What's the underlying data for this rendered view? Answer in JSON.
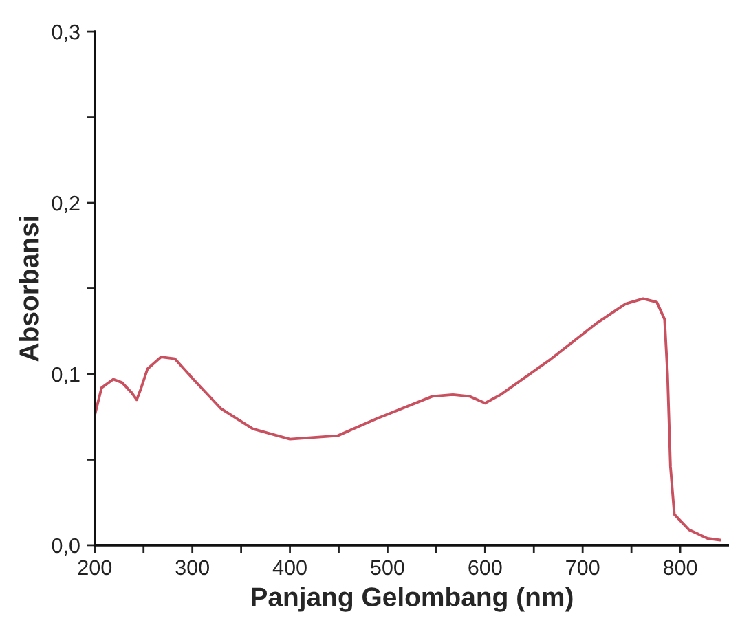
{
  "chart_data": {
    "type": "line",
    "xlabel": "Panjang Gelombang (nm)",
    "ylabel": "Absorbansi",
    "x": [
      200,
      207,
      219,
      228,
      238,
      243,
      247,
      254,
      268,
      282,
      301,
      329,
      362,
      400,
      449,
      489,
      546,
      567,
      584,
      600,
      616,
      668,
      715,
      744,
      762,
      776,
      784,
      787,
      790,
      794,
      809,
      828,
      841
    ],
    "series": [
      {
        "color": "#c8505f",
        "values": [
          0.076,
          0.092,
          0.097,
          0.095,
          0.089,
          0.085,
          0.091,
          0.103,
          0.11,
          0.109,
          0.097,
          0.08,
          0.068,
          0.062,
          0.064,
          0.074,
          0.087,
          0.088,
          0.087,
          0.083,
          0.088,
          0.109,
          0.13,
          0.141,
          0.144,
          0.142,
          0.132,
          0.1,
          0.046,
          0.018,
          0.009,
          0.004,
          0.003
        ]
      }
    ],
    "xlim": [
      200,
      850
    ],
    "ylim": [
      0,
      0.3
    ],
    "xticks": [
      200,
      {
        "value": 250,
        "label": null
      },
      300,
      {
        "value": 350,
        "label": null
      },
      400,
      {
        "value": 450,
        "label": null
      },
      500,
      {
        "value": 550,
        "label": null
      },
      600,
      {
        "value": 650,
        "label": null
      },
      700,
      {
        "value": 750,
        "label": null
      },
      800
    ],
    "yticks": [
      {
        "value": 0,
        "label": "0,0"
      },
      {
        "value": 0.05,
        "label": null
      },
      {
        "value": 0.1,
        "label": "0,1"
      },
      {
        "value": 0.15,
        "label": null
      },
      {
        "value": 0.2,
        "label": "0,2"
      },
      {
        "value": 0.25,
        "label": null
      },
      {
        "value": 0.3,
        "label": "0,3"
      }
    ],
    "grid": false,
    "marker": "none",
    "line_style": "solid"
  }
}
